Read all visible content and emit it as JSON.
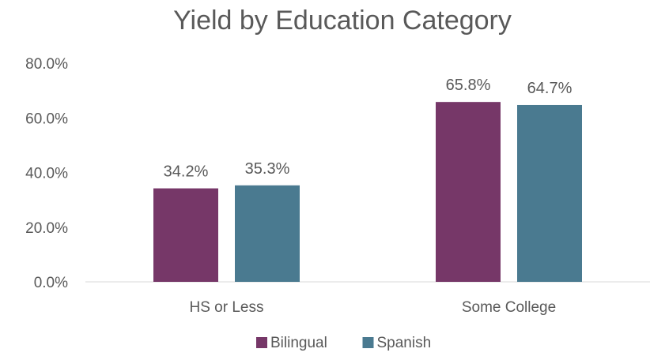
{
  "chart_data": {
    "type": "bar",
    "title": "Yield by Education Category",
    "categories": [
      "HS or Less",
      "Some College"
    ],
    "series": [
      {
        "name": "Bilingual",
        "color": "#763768",
        "values": [
          34.2,
          65.8
        ],
        "labels": [
          "34.2%",
          "65.8%"
        ]
      },
      {
        "name": "Spanish",
        "color": "#4A7A90",
        "values": [
          35.3,
          64.7
        ],
        "labels": [
          "35.3%",
          "64.7%"
        ]
      }
    ],
    "ylim": [
      0,
      80
    ],
    "yticks": [
      {
        "value": 0,
        "label": "0.0%"
      },
      {
        "value": 20,
        "label": "20.0%"
      },
      {
        "value": 40,
        "label": "40.0%"
      },
      {
        "value": 60,
        "label": "60.0%"
      },
      {
        "value": 80,
        "label": "80.0%"
      }
    ],
    "xlabel": "",
    "ylabel": "",
    "grid": false,
    "legend_position": "bottom"
  }
}
